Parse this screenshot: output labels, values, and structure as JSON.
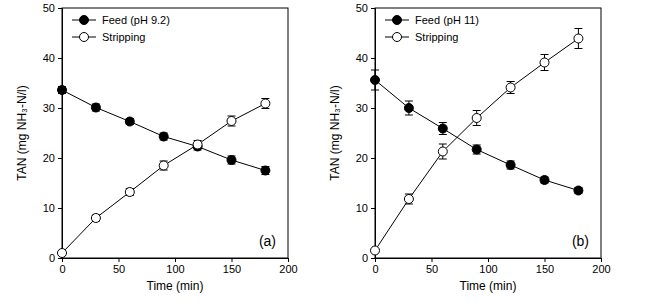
{
  "chart_data": [
    {
      "type": "line",
      "xlabel": "Time (min)",
      "ylabel": "TAN (mg NH₃-N/l)",
      "annotation": "(a)",
      "x": [
        0,
        30,
        60,
        90,
        120,
        150,
        180
      ],
      "series": [
        {
          "name": "Feed (pH 9.2)",
          "color": "#000000",
          "marker": "filled",
          "line_style": "solid",
          "values": [
            33.6,
            30.1,
            27.3,
            24.3,
            22.3,
            19.6,
            17.5
          ],
          "errors": [
            0.7,
            0.7,
            0.6,
            0.7,
            0.7,
            0.8,
            0.8
          ]
        },
        {
          "name": "Stripping",
          "color": "#000000",
          "marker": "open",
          "line_style": "solid",
          "values": [
            1.0,
            8.0,
            13.2,
            18.5,
            22.7,
            27.4,
            30.9
          ],
          "errors": [
            0.4,
            0.6,
            0.7,
            0.9,
            0.8,
            1.0,
            1.0
          ]
        }
      ],
      "xlim": [
        0,
        200
      ],
      "xticks": [
        0,
        50,
        100,
        150,
        200
      ],
      "ylim": [
        0,
        50
      ],
      "yticks": [
        0,
        10,
        20,
        30,
        40,
        50
      ],
      "legend": "upper left",
      "grid": false
    },
    {
      "type": "line",
      "xlabel": "Time (min)",
      "ylabel": "TAN (mg NH₃-N/l)",
      "annotation": "(b)",
      "x": [
        0,
        30,
        60,
        90,
        120,
        150,
        180
      ],
      "series": [
        {
          "name": "Feed (pH 11)",
          "color": "#000000",
          "marker": "filled",
          "line_style": "solid",
          "values": [
            35.6,
            30.0,
            25.9,
            21.7,
            18.6,
            15.6,
            13.5
          ],
          "errors": [
            2.0,
            1.4,
            1.2,
            0.9,
            0.8,
            0.6,
            0.6
          ]
        },
        {
          "name": "Stripping",
          "color": "#000000",
          "marker": "open",
          "line_style": "solid",
          "values": [
            1.5,
            11.8,
            21.3,
            28.0,
            34.1,
            39.1,
            43.9
          ],
          "errors": [
            0.4,
            1.0,
            1.5,
            1.5,
            1.2,
            1.6,
            2.0
          ]
        }
      ],
      "xlim": [
        0,
        200
      ],
      "xticks": [
        0,
        50,
        100,
        150,
        200
      ],
      "ylim": [
        0,
        50
      ],
      "yticks": [
        0,
        10,
        20,
        30,
        40,
        50
      ],
      "legend": "upper left",
      "grid": false
    }
  ]
}
